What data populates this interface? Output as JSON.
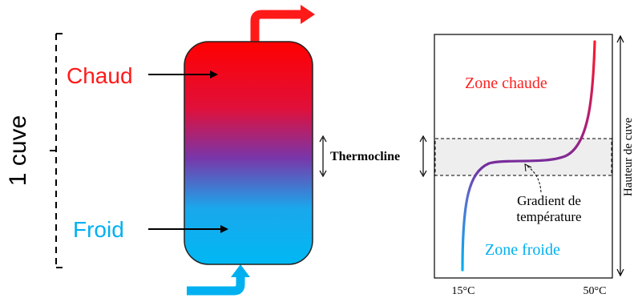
{
  "diagram": {
    "tank_label": "1 cuve",
    "hot_label": "Chaud",
    "cold_label": "Froid",
    "thermocline_label": "Thermocline",
    "zone_hot_label": "Zone chaude",
    "zone_cold_label": "Zone froide",
    "gradient_label_line1": "Gradient de",
    "gradient_label_line2": "température",
    "height_label": "Hauteur de cuve",
    "x_tick_left": "15°C",
    "x_tick_right": "50°C"
  },
  "colors": {
    "hot": "#ff1a1a",
    "cold": "#00b0f0",
    "mix": "#7030a0",
    "band": "#eeeeee"
  }
}
